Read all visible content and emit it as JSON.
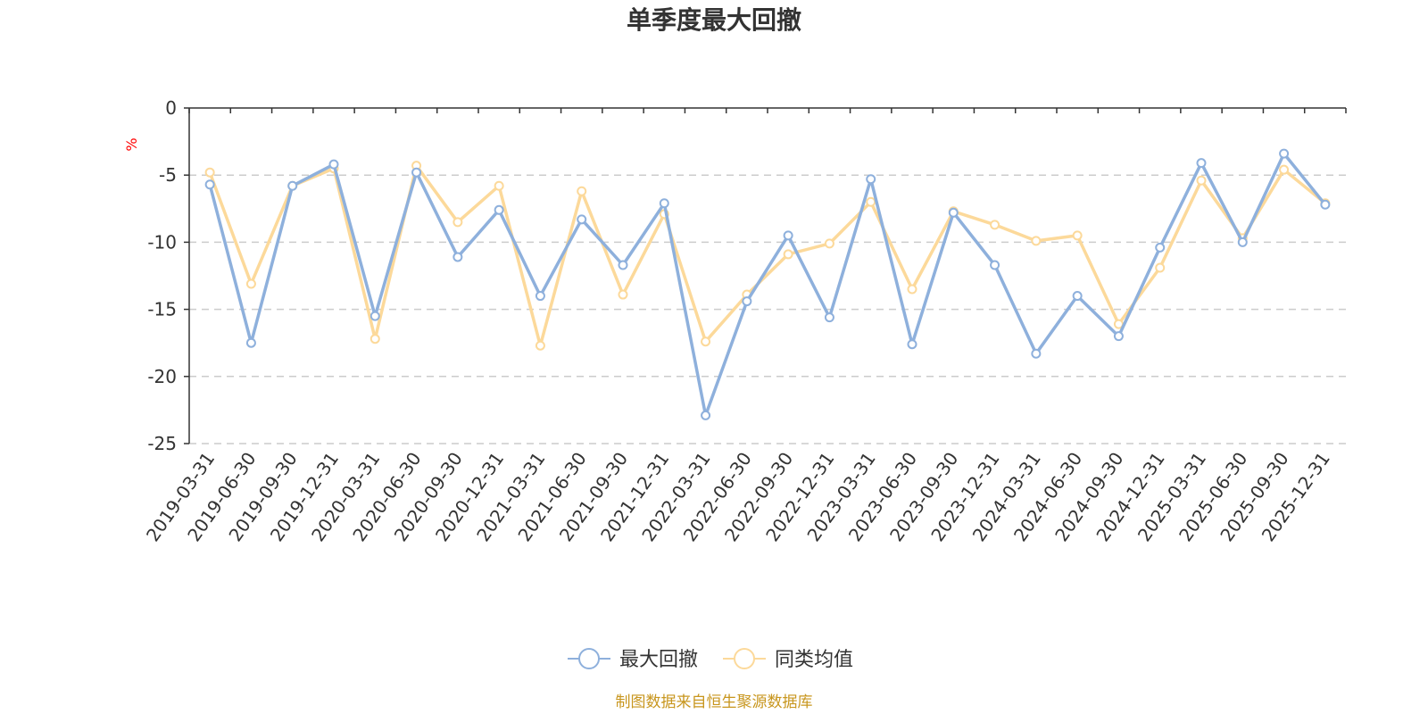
{
  "chart_data": {
    "type": "line",
    "title": "单季度最大回撤",
    "unit": "%",
    "ylim": [
      -25,
      0
    ],
    "yticks": [
      0,
      -5,
      -10,
      -15,
      -20,
      -25
    ],
    "grid": "dashed horizontal",
    "legend_position": "bottom-center",
    "categories": [
      "2019-03-31",
      "2019-06-30",
      "2019-09-30",
      "2019-12-31",
      "2020-03-31",
      "2020-06-30",
      "2020-09-30",
      "2020-12-31",
      "2021-03-31",
      "2021-06-30",
      "2021-09-30",
      "2021-12-31",
      "2022-03-31",
      "2022-06-30",
      "2022-09-30",
      "2022-12-31",
      "2023-03-31",
      "2023-06-30",
      "2023-09-30",
      "2023-12-31",
      "2024-03-31",
      "2024-06-30",
      "2024-09-30",
      "2024-12-31",
      "2025-03-31",
      "2025-06-30",
      "2025-09-30",
      "2025-12-31"
    ],
    "series": [
      {
        "name": "最大回撤",
        "color": "#8eb0dc",
        "values": [
          -5.7,
          -17.5,
          -5.8,
          -4.2,
          -15.5,
          -4.8,
          -11.1,
          -7.6,
          -14.0,
          -8.3,
          -11.7,
          -7.1,
          -22.9,
          -14.4,
          -9.5,
          -15.6,
          -5.3,
          -17.6,
          -7.8,
          -11.7,
          -18.3,
          -14.0,
          -17.0,
          -10.4,
          -4.1,
          -10.0,
          -3.4,
          -7.2
        ]
      },
      {
        "name": "同类均值",
        "color": "#fcd99a",
        "values": [
          -4.8,
          -13.1,
          -5.8,
          -4.5,
          -17.2,
          -4.3,
          -8.5,
          -5.8,
          -17.7,
          -6.2,
          -13.9,
          -7.9,
          -17.4,
          -13.9,
          -10.9,
          -10.1,
          -7.0,
          -13.5,
          -7.7,
          -8.7,
          -9.9,
          -9.5,
          -16.1,
          -11.9,
          -5.4,
          -9.7,
          -4.6,
          -7.1
        ]
      }
    ],
    "source": "制图数据来自恒生聚源数据库"
  }
}
